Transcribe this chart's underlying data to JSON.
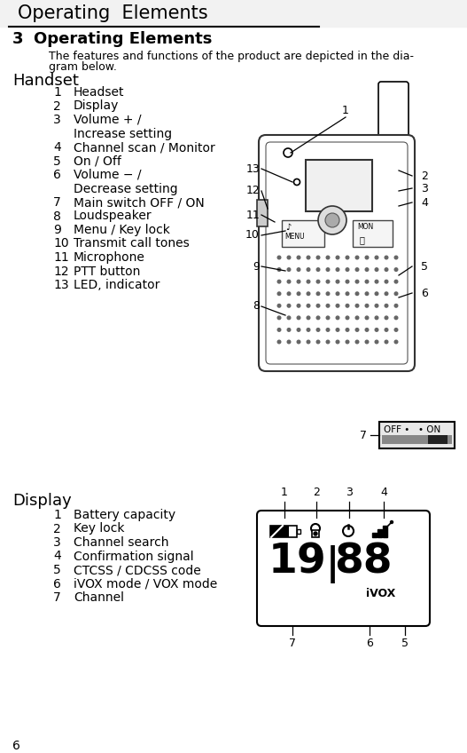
{
  "page_title": "Operating  Elements",
  "section_num": "3",
  "section_title": "Operating Elements",
  "intro_line1": "The features and functions of the product are depicted in the dia-",
  "intro_line2": "gram below.",
  "handset_label": "Handset",
  "handset_items": [
    [
      1,
      "Headset",
      false
    ],
    [
      2,
      "Display",
      false
    ],
    [
      3,
      "Volume + /",
      true
    ],
    [
      3,
      "Increase setting",
      false
    ],
    [
      4,
      "Channel scan / Monitor",
      false
    ],
    [
      5,
      "On / Off",
      false
    ],
    [
      6,
      "Volume − /",
      true
    ],
    [
      6,
      "Decrease setting",
      false
    ],
    [
      7,
      "Main switch OFF / ON",
      false
    ],
    [
      8,
      "Loudspeaker",
      false
    ],
    [
      9,
      "Menu / Key lock",
      false
    ],
    [
      10,
      "Transmit call tones",
      false
    ],
    [
      11,
      "Microphone",
      false
    ],
    [
      12,
      "PTT button",
      false
    ],
    [
      13,
      "LED, indicator",
      false
    ]
  ],
  "display_label": "Display",
  "display_items": [
    [
      1,
      "Battery capacity"
    ],
    [
      2,
      "Key lock"
    ],
    [
      3,
      "Channel search"
    ],
    [
      4,
      "Confirmation signal"
    ],
    [
      5,
      "CTCSS / CDCSS code"
    ],
    [
      6,
      "iVOX mode / VOX mode"
    ],
    [
      7,
      "Channel"
    ]
  ],
  "page_num": "6",
  "bg_color": "#ffffff",
  "text_color": "#000000"
}
